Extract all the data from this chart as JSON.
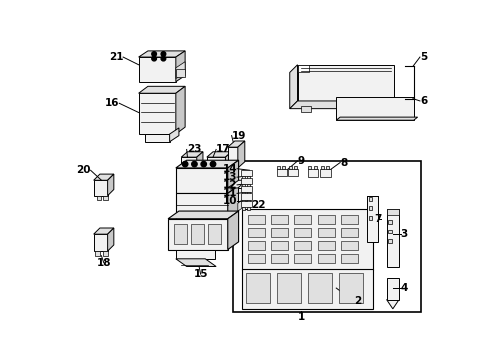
{
  "bg_color": "#ffffff",
  "line_color": "#000000",
  "fill_light": "#f2f2f2",
  "fill_mid": "#e0e0e0",
  "fill_dark": "#c8c8c8"
}
